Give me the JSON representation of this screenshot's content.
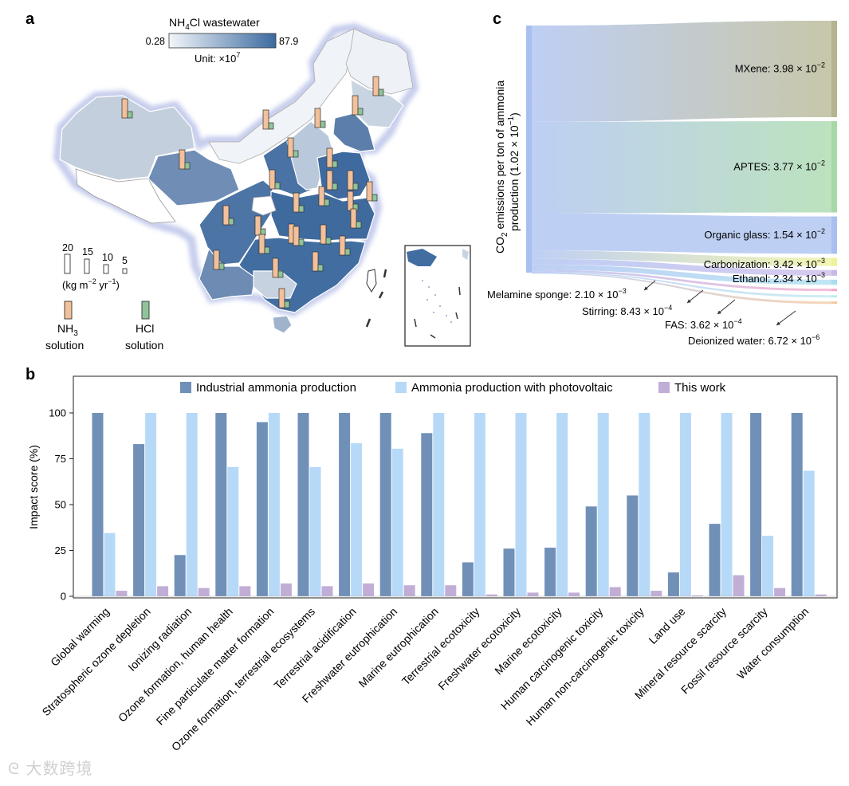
{
  "panel_a": {
    "letter": "a",
    "legend_title_prefix": "NH",
    "legend_title_sub": "4",
    "legend_title_suffix": "Cl wastewater",
    "scale_min": "0.28",
    "scale_max": "87.9",
    "unit_prefix": "Unit: ×10",
    "unit_exp": "7",
    "bar_scale": [
      "20",
      "15",
      "10",
      "5"
    ],
    "bar_unit": "(kg m",
    "bar_unit_exp1": "−2",
    "bar_unit_mid": " yr",
    "bar_unit_exp2": "−1",
    "bar_unit_end": ")",
    "nh3_label_1": "NH",
    "nh3_label_sub": "3",
    "nh3_label_2": "solution",
    "hcl_label_1": "HCl",
    "hcl_label_2": "solution",
    "colors": {
      "nh3": "#f2c09a",
      "hcl": "#8fc49a",
      "map_light": "#eef2f6",
      "map_dark": "#3b6aa0"
    }
  },
  "panel_c": {
    "letter": "c",
    "axis_label_1": "CO",
    "axis_label_sub": "2",
    "axis_label_2": " emissions per ton of ammonia",
    "axis_label_3": "production (1.02 × 10",
    "axis_label_exp": "−1",
    "axis_label_4": ")",
    "flows": [
      {
        "name": "MXene",
        "mant": "3.98",
        "exp": "−2",
        "color": "#b5b48e"
      },
      {
        "name": "APTES",
        "mant": "3.77",
        "exp": "−2",
        "color": "#a6d8a8"
      },
      {
        "name": "Organic glass",
        "mant": "1.54",
        "exp": "−2",
        "color": "#a9bff0"
      },
      {
        "name": "Carbonization",
        "mant": "3.42",
        "exp": "−3",
        "color": "#eef29a"
      },
      {
        "name": "Ethanol",
        "mant": "2.34",
        "exp": "−3",
        "color": "#c8b8e8"
      },
      {
        "name": "Melamine sponge",
        "mant": "2.10",
        "exp": "−3",
        "color": "#a9def0"
      },
      {
        "name": "Stirring",
        "mant": "8.43",
        "exp": "−4",
        "color": "#f2a6c8"
      },
      {
        "name": "FAS",
        "mant": "3.62",
        "exp": "−4",
        "color": "#bfe8f0"
      },
      {
        "name": "Deionized water",
        "mant": "6.72",
        "exp": "−6",
        "color": "#f4c9a0"
      }
    ]
  },
  "chart_data": {
    "type": "bar",
    "letter": "b",
    "ylabel": "Impact score (%)",
    "ylim": [
      0,
      120
    ],
    "yticks": [
      0,
      25,
      50,
      75,
      100
    ],
    "legend_position": "top-center",
    "categories": [
      "Global warming",
      "Stratospheric ozone depletion",
      "Ionizing radiation",
      "Ozone formation, human health",
      "Fine particulate matter formation",
      "Ozone formation, terrestrial ecosystems",
      "Terrestrial acidification",
      "Freshwater eutrophication",
      "Marine eutrophication",
      "Terrestrial ecotoxicity",
      "Freshwater ecotoxicity",
      "Marine ecotoxicity",
      "Human carcinogenic toxicity",
      "Human non-carcinogenic toxicity",
      "Land use",
      "Mineral resource scarcity",
      "Fossil resource scarcity",
      "Water consumption"
    ],
    "series": [
      {
        "name": "Industrial ammonia production",
        "color": "#7090b8",
        "values": [
          100,
          83,
          22.5,
          100,
          95,
          100,
          100,
          100,
          89,
          18.5,
          26,
          26.5,
          49,
          55,
          13,
          39.5,
          100,
          100
        ]
      },
      {
        "name": "Ammonia production with photovoltaic",
        "color": "#b7d9f8",
        "values": [
          34.5,
          100,
          100,
          70.5,
          100,
          70.5,
          83.5,
          80.5,
          100,
          100,
          100,
          100,
          100,
          100,
          100,
          100,
          33,
          68.5
        ]
      },
      {
        "name": "This work",
        "color": "#c1aed6",
        "values": [
          3,
          5.5,
          4.5,
          5.5,
          7,
          5.5,
          7,
          6,
          6,
          1,
          2,
          2,
          5,
          3,
          0.5,
          11.5,
          4.5,
          1
        ]
      }
    ]
  },
  "watermark": "大数跨境"
}
